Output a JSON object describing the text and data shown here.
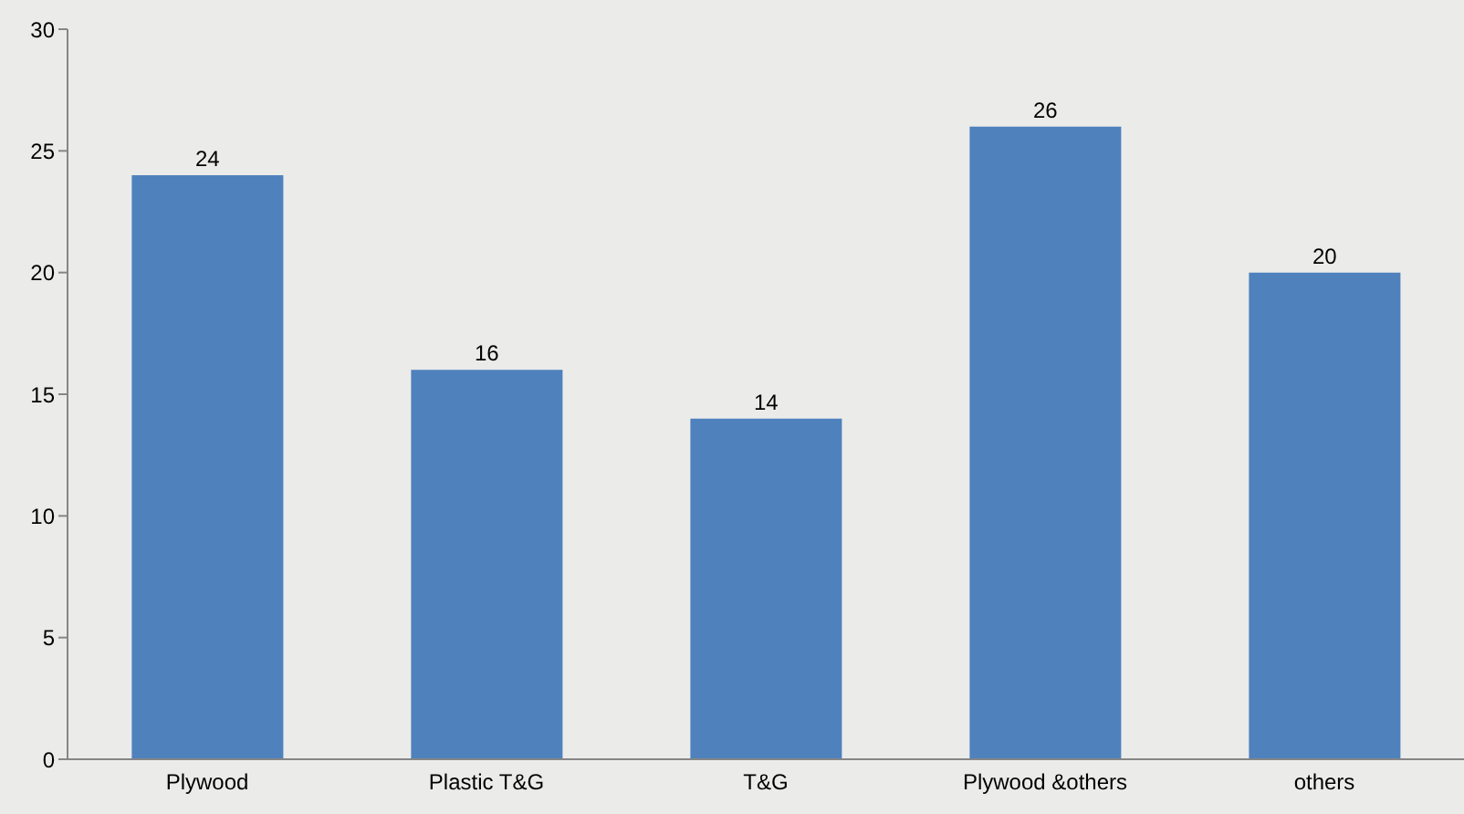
{
  "chart_data": {
    "type": "bar",
    "categories": [
      "Plywood",
      "Plastic T&G",
      "T&G",
      "Plywood &others",
      "others"
    ],
    "values": [
      24,
      16,
      14,
      26,
      20
    ],
    "color": "#4f81bd",
    "ylim": [
      0,
      30
    ],
    "yticks": [
      0,
      5,
      10,
      15,
      20,
      25,
      30
    ],
    "data_labels": true
  }
}
